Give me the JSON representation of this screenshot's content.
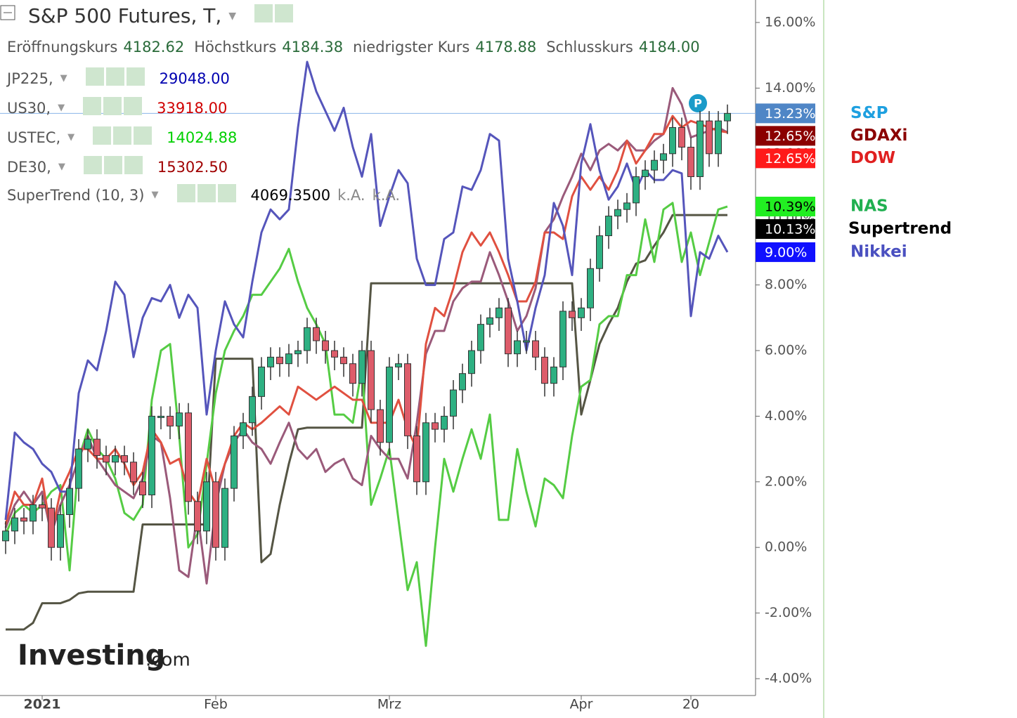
{
  "chart_data": {
    "type": "candlestick",
    "legend_panel": {
      "title": "S&P 500 Futures, T,",
      "ohlc": [
        {
          "label": "Eröffnungskurs",
          "value": "4182.62"
        },
        {
          "label": "Höchstkurs",
          "value": "4184.38"
        },
        {
          "label": "niedrigster Kurs",
          "value": "4178.88"
        },
        {
          "label": "Schlusskurs",
          "value": "4184.00"
        }
      ],
      "rows": [
        {
          "name": "JP225,",
          "value": "29048.00",
          "color": "#0000b0"
        },
        {
          "name": "US30,",
          "value": "33918.00",
          "color": "#d00000"
        },
        {
          "name": "USTEC,",
          "value": "14024.88",
          "color": "#00d000"
        },
        {
          "name": "DE30,",
          "value": "15302.50",
          "color": "#a00000"
        },
        {
          "name": "SuperTrend (10, 3)",
          "value": "4069.3500",
          "color": "#000000",
          "extra": [
            "k.A.",
            "k.A."
          ]
        }
      ]
    },
    "watermark": [
      "Investing",
      ".com"
    ],
    "categories": [
      null,
      null,
      null,
      null,
      "2021",
      null,
      null,
      null,
      null,
      null,
      null,
      null,
      null,
      null,
      null,
      null,
      null,
      null,
      null,
      null,
      null,
      null,
      null,
      "Feb",
      null,
      null,
      null,
      null,
      null,
      null,
      null,
      null,
      null,
      null,
      null,
      null,
      null,
      null,
      null,
      null,
      null,
      null,
      "Mrz",
      null,
      null,
      null,
      null,
      null,
      null,
      null,
      null,
      null,
      null,
      null,
      null,
      null,
      null,
      null,
      null,
      null,
      null,
      null,
      null,
      "Apr",
      null,
      null,
      null,
      null,
      null,
      null,
      null,
      null,
      null,
      null,
      null,
      "20",
      null,
      null,
      null,
      null
    ],
    "ylim": [
      -4,
      16
    ],
    "yticks": [
      {
        "value": 16,
        "label": "16.00%"
      },
      {
        "value": 14,
        "label": "14.00%"
      },
      {
        "value": 12,
        "label": "12.00%"
      },
      {
        "value": 10,
        "label": "10.00%"
      },
      {
        "value": 8,
        "label": "8.00%"
      },
      {
        "value": 6,
        "label": "6.00%"
      },
      {
        "value": 4,
        "label": "4.00%"
      },
      {
        "value": 2,
        "label": "2.00%"
      },
      {
        "value": 0,
        "label": "0.00%"
      },
      {
        "value": -2,
        "label": "-2.00%"
      },
      {
        "value": -4,
        "label": "-4.00%"
      }
    ],
    "candles": {
      "name": "S&P",
      "name_color": "#1ea0e0",
      "up_color": "#2eb082",
      "down_color": "#dd5c6a",
      "tag": {
        "value": 13.23,
        "label": "13.23%"
      },
      "tag_color": "#4f86c6",
      "tag_text_color": "#ffffff",
      "open": [
        0.2,
        0.5,
        0.9,
        0.8,
        1.3,
        1.2,
        0.0,
        1.0,
        1.8,
        3.0,
        3.3,
        2.8,
        2.6,
        2.8,
        2.6,
        2.0,
        1.6,
        4.0,
        4.0,
        3.7,
        4.1,
        1.4,
        0.5,
        2.0,
        0.0,
        1.8,
        3.4,
        3.8,
        4.6,
        5.5,
        5.8,
        5.6,
        5.9,
        6.0,
        6.7,
        6.3,
        6.0,
        5.8,
        5.6,
        5.0,
        6.0,
        4.2,
        3.2,
        5.5,
        5.6,
        3.4,
        2.0,
        3.8,
        3.6,
        4.0,
        4.8,
        5.3,
        6.0,
        6.8,
        7.0,
        7.3,
        5.9,
        6.3,
        6.3,
        5.8,
        5.0,
        5.5,
        7.2,
        7.0,
        7.3,
        8.5,
        9.5,
        10.1,
        10.3,
        10.5,
        11.3,
        11.5,
        11.8,
        12.0,
        12.8,
        12.2,
        11.3,
        13.0,
        12.0,
        13.0
      ],
      "high": [
        0.8,
        1.2,
        1.2,
        1.6,
        1.6,
        1.5,
        1.3,
        2.1,
        3.3,
        3.6,
        3.6,
        3.1,
        3.1,
        3.1,
        2.9,
        2.3,
        4.3,
        4.3,
        4.3,
        4.4,
        4.4,
        1.7,
        2.3,
        2.3,
        2.1,
        3.7,
        4.1,
        4.9,
        5.8,
        6.1,
        6.1,
        6.2,
        6.3,
        7.0,
        7.0,
        6.6,
        6.3,
        6.1,
        5.9,
        6.3,
        6.3,
        4.5,
        5.8,
        5.9,
        5.9,
        3.7,
        4.1,
        4.1,
        4.3,
        5.1,
        5.6,
        6.3,
        7.1,
        7.3,
        7.6,
        7.6,
        6.6,
        6.6,
        6.6,
        6.1,
        5.8,
        7.5,
        7.5,
        7.6,
        8.8,
        9.8,
        10.4,
        10.6,
        10.8,
        11.6,
        11.8,
        12.1,
        12.3,
        13.1,
        13.1,
        12.5,
        13.3,
        13.3,
        13.3,
        13.5
      ],
      "low": [
        -0.2,
        0.1,
        0.4,
        0.4,
        0.8,
        -0.4,
        -0.4,
        0.6,
        1.4,
        2.6,
        2.4,
        2.2,
        2.2,
        2.2,
        1.6,
        1.2,
        1.2,
        3.6,
        3.3,
        3.3,
        1.0,
        0.1,
        0.1,
        -0.4,
        -0.4,
        1.4,
        3.0,
        3.4,
        4.2,
        5.1,
        5.2,
        5.2,
        5.5,
        5.6,
        5.9,
        5.6,
        5.4,
        5.2,
        4.6,
        4.6,
        3.8,
        2.8,
        2.8,
        5.1,
        3.0,
        1.6,
        1.6,
        3.2,
        3.2,
        3.6,
        4.4,
        4.9,
        5.6,
        6.4,
        6.6,
        5.5,
        5.5,
        5.9,
        5.4,
        4.6,
        4.6,
        5.1,
        6.6,
        6.6,
        6.9,
        8.1,
        9.1,
        9.7,
        9.9,
        10.1,
        10.9,
        11.1,
        11.4,
        11.6,
        11.8,
        10.9,
        10.9,
        11.6,
        11.6,
        12.6
      ],
      "close": [
        0.5,
        0.9,
        0.8,
        1.3,
        1.2,
        0.0,
        1.0,
        1.8,
        3.0,
        3.3,
        2.8,
        2.6,
        2.8,
        2.6,
        2.0,
        1.6,
        4.0,
        4.0,
        3.7,
        4.1,
        1.4,
        0.5,
        2.0,
        0.0,
        1.8,
        3.4,
        3.8,
        4.6,
        5.5,
        5.8,
        5.6,
        5.9,
        6.0,
        6.7,
        6.3,
        6.0,
        5.8,
        5.6,
        5.0,
        6.0,
        4.2,
        3.2,
        5.5,
        5.6,
        3.4,
        2.0,
        3.8,
        3.6,
        4.0,
        4.8,
        5.3,
        6.0,
        6.8,
        7.0,
        7.3,
        5.9,
        6.3,
        6.3,
        5.8,
        5.0,
        5.5,
        7.2,
        7.0,
        7.3,
        8.5,
        9.5,
        10.1,
        10.3,
        10.5,
        11.3,
        11.5,
        11.8,
        12.0,
        12.8,
        12.2,
        11.3,
        13.0,
        12.0,
        13.0,
        13.23
      ]
    },
    "series": [
      {
        "name": "Supertrend",
        "color": "#555544",
        "name_color": "#000000",
        "tag": {
          "value": 10.13,
          "label": "10.13%"
        },
        "tag_color": "#000000",
        "tag_text_color": "#ffffff",
        "values": [
          -2.5,
          -2.5,
          -2.5,
          -2.3,
          -1.7,
          -1.7,
          -1.7,
          -1.6,
          -1.4,
          -1.35,
          -1.35,
          -1.35,
          -1.35,
          -1.35,
          -1.35,
          0.7,
          0.7,
          0.7,
          0.7,
          0.7,
          0.7,
          0.7,
          0.7,
          5.75,
          5.75,
          5.75,
          5.75,
          5.75,
          -0.45,
          -0.2,
          1.3,
          2.55,
          3.6,
          3.65,
          3.65,
          3.65,
          3.65,
          3.65,
          3.65,
          3.65,
          8.05,
          8.05,
          8.05,
          8.05,
          8.05,
          8.05,
          8.05,
          8.05,
          8.05,
          8.05,
          8.05,
          8.05,
          8.05,
          8.05,
          8.05,
          8.05,
          8.05,
          8.05,
          8.05,
          8.05,
          8.05,
          8.05,
          8.05,
          4.05,
          5.1,
          6.2,
          6.8,
          7.3,
          8.1,
          8.65,
          8.75,
          9.2,
          9.6,
          10.13,
          10.13,
          10.13,
          10.13,
          10.13,
          10.13,
          10.13
        ]
      },
      {
        "name": "NAS",
        "color": "#55cc44",
        "name_color": "#20b050",
        "tag": {
          "value": 10.39,
          "label": "10.39%"
        },
        "tag_color": "#22ee22",
        "tag_text_color": "#000000",
        "values": [
          0.4,
          1.05,
          1.3,
          1.05,
          1.3,
          1.7,
          1.9,
          -0.7,
          2.7,
          3.6,
          3.0,
          2.7,
          2.1,
          1.05,
          0.84,
          1.3,
          4.5,
          6.0,
          6.2,
          3.4,
          0,
          0.4,
          2.55,
          4.7,
          6.0,
          6.6,
          7.05,
          7.7,
          7.7,
          8.1,
          8.5,
          9.1,
          8.1,
          7.3,
          6.8,
          6.2,
          4.05,
          4.05,
          3.8,
          5.5,
          1.3,
          2.1,
          3.0,
          0.84,
          -1.3,
          -0.45,
          -3.0,
          0,
          2.7,
          1.7,
          2.7,
          3.6,
          2.7,
          4.05,
          0.84,
          0.84,
          3.0,
          1.7,
          0.64,
          2.1,
          1.9,
          1.5,
          3.4,
          4.9,
          5.1,
          6.8,
          7.05,
          7.05,
          8.3,
          8.3,
          10.0,
          8.7,
          10.3,
          10.5,
          8.7,
          9.6,
          8.3,
          9.3,
          10.3,
          10.39
        ]
      },
      {
        "name": "GDAXi",
        "color": "#9a5a7a",
        "name_color": "#8b0000",
        "tag": {
          "value": 12.65,
          "label": "12.65%"
        },
        "tag_color": "#8b0000",
        "tag_text_color": "#ffffff",
        "values": [
          0.6,
          1.3,
          1.7,
          1.3,
          1.7,
          0.4,
          1.3,
          1.9,
          2.7,
          3.4,
          2.7,
          2.3,
          1.9,
          1.7,
          1.5,
          2.1,
          3.4,
          3.2,
          1.5,
          -0.7,
          -0.9,
          1.05,
          -1.1,
          1.3,
          2.55,
          3.2,
          3.6,
          3.2,
          3.0,
          2.55,
          3.2,
          3.8,
          3.0,
          2.7,
          3.0,
          2.3,
          2.55,
          2.7,
          2.1,
          1.9,
          3.4,
          3.0,
          2.7,
          2.7,
          2.1,
          3.8,
          5.9,
          6.6,
          6.6,
          7.5,
          7.9,
          8.1,
          8.1,
          9.0,
          8.3,
          7.5,
          6.6,
          7.05,
          7.9,
          9.6,
          10.0,
          10.7,
          11.3,
          12.0,
          11.5,
          12.1,
          12.3,
          12.1,
          12.4,
          12.1,
          12.1,
          12.4,
          12.6,
          14.0,
          13.5,
          12.5,
          12.6,
          12.7,
          12.8,
          12.65
        ]
      },
      {
        "name": "DOW",
        "color": "#e05040",
        "name_color": "#e02020",
        "tag": {
          "value": 12.65,
          "label": "12.65%"
        },
        "tag_color": "#ff1a1a",
        "tag_text_color": "#ffffff",
        "values": [
          0.7,
          1.7,
          1.3,
          1.3,
          2.1,
          0.4,
          1.7,
          2.3,
          3.0,
          3.0,
          2.7,
          2.7,
          3.0,
          2.55,
          1.9,
          2.3,
          3.6,
          3.2,
          2.55,
          2.7,
          1.7,
          1.3,
          2.7,
          1.7,
          2.55,
          3.4,
          3.8,
          3.6,
          3.8,
          4.05,
          4.3,
          4.05,
          4.9,
          4.7,
          4.5,
          4.7,
          4.9,
          4.7,
          4.5,
          4.5,
          3.8,
          3.8,
          3.8,
          4.5,
          3.6,
          3.0,
          6.2,
          7.3,
          7.05,
          7.9,
          9.0,
          9.6,
          9.2,
          9.6,
          9.0,
          8.3,
          7.5,
          7.5,
          8.1,
          9.6,
          9.6,
          9.4,
          10.7,
          11.3,
          10.9,
          11.3,
          10.9,
          11.5,
          12.4,
          11.7,
          12.1,
          12.6,
          12.6,
          13.15,
          12.8,
          13.0,
          12.9,
          12.8,
          12.7,
          12.65
        ]
      },
      {
        "name": "Nikkei",
        "color": "#5555bb",
        "name_color": "#4a50c0",
        "tag": {
          "value": 9.0,
          "label": "9.00%"
        },
        "tag_color": "#1010ff",
        "tag_text_color": "#ffffff",
        "values": [
          0.84,
          3.5,
          3.2,
          3.0,
          2.55,
          2.3,
          1.7,
          1.7,
          4.7,
          5.7,
          5.4,
          6.6,
          8.1,
          7.7,
          5.8,
          7.0,
          7.6,
          7.5,
          8.0,
          7.0,
          7.7,
          7.3,
          4.05,
          6.0,
          7.5,
          6.8,
          6.4,
          8.1,
          9.6,
          10.3,
          10.0,
          10.3,
          12.8,
          14.8,
          13.9,
          13.3,
          12.7,
          13.4,
          12.2,
          11.3,
          12.6,
          9.8,
          10.7,
          11.5,
          11.1,
          8.8,
          8.0,
          8.0,
          9.4,
          9.6,
          11.0,
          10.9,
          11.5,
          12.6,
          12.4,
          8.8,
          7.5,
          6.0,
          7.3,
          8.3,
          10.5,
          9.8,
          8.3,
          11.7,
          12.9,
          11.5,
          10.6,
          11.0,
          11.7,
          10.9,
          11.5,
          11.2,
          11.2,
          11.5,
          11.4,
          7.05,
          9.0,
          8.8,
          9.5,
          9.0
        ]
      }
    ]
  }
}
